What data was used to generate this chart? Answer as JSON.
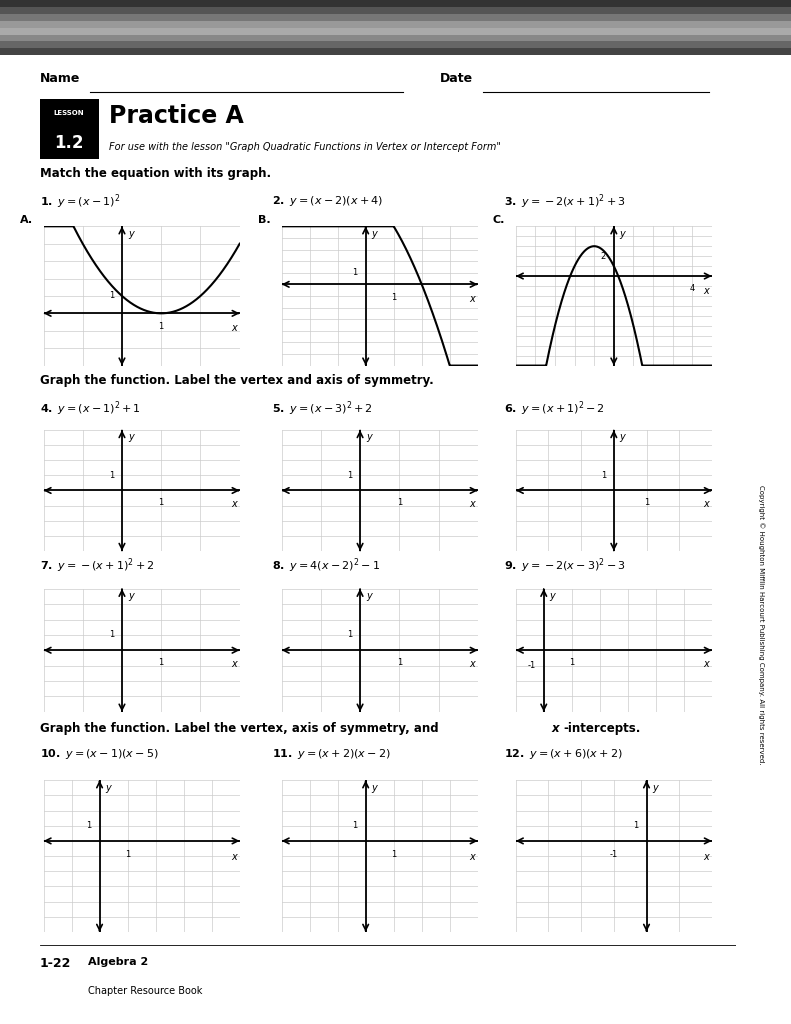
{
  "title": "Practice A",
  "lesson": "1.2",
  "lesson_label": "LESSON",
  "subtitle": "For use with the lesson \"Graph Quadratic Functions in Vertex or Intercept Form\"",
  "name_label": "Name",
  "date_label": "Date",
  "section1_title": "Match the equation with its graph.",
  "section2_title": "Graph the function. Label the vertex and axis of symmetry.",
  "section3_title": "Graph the function. Label the vertex, axis of symmetry, and x-intercepts.",
  "eq1": [
    "y = (x − 1)²",
    "y = (x − 2)(x + 4)",
    "y = −2(x + 1)² + 3"
  ],
  "eq2": [
    "y = (x − 1)² + 1",
    "y = (x − 3)² + 2",
    "y = (x + 1)² − 2"
  ],
  "eq3": [
    "y = −(x + 1)² + 2",
    "y = 4(x − 2)² − 1",
    "y = −2(x − 3)² − 3"
  ],
  "eq4": [
    "y = (x − 1)(x − 5)",
    "y = (x + 2)(x − 2)",
    "y = (x + 6)(x + 2)"
  ],
  "footer_line1": "Algebra 2",
  "footer_line2": "Chapter Resource Book",
  "footer_page": "1-22",
  "side_label": "LESSON 1.2",
  "copyright": "Copyright © Houghton Mifflin Harcourt Publishing Company. All rights reserved.",
  "bg_color": "#ffffff",
  "grid_color": "#cccccc",
  "axis_color": "#000000",
  "curve_color": "#000000"
}
